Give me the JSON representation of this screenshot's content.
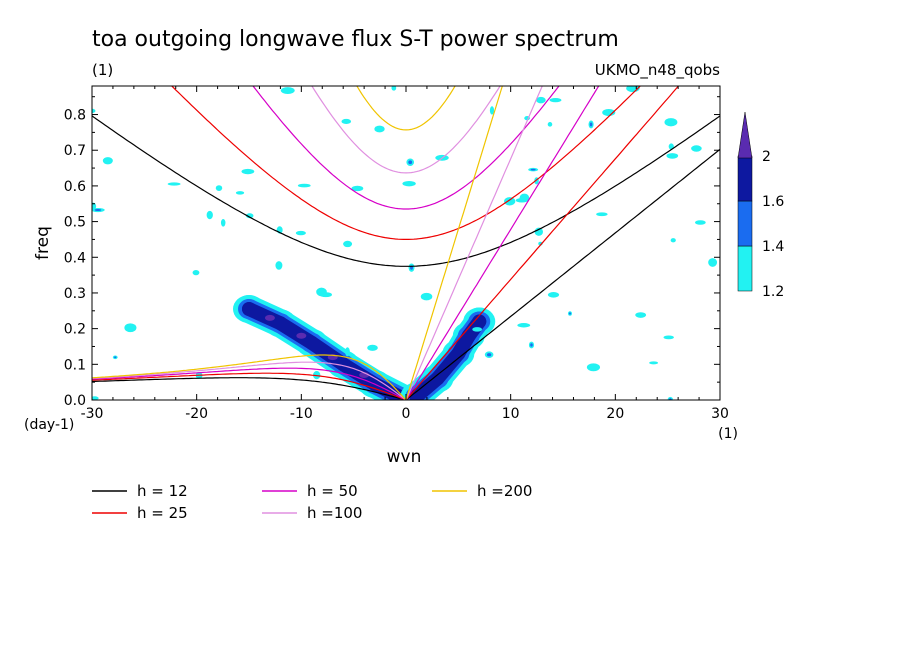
{
  "chart_data": {
    "type": "heatmap",
    "title": "toa outgoing longwave flux S-T power spectrum",
    "subtitle_left": "(1)",
    "subtitle_right": "UKMO_n48_qobs",
    "xlabel": "wvn",
    "ylabel": "freq",
    "y_unit_label": "(day-1)",
    "x_unit_label": "(1)",
    "xlim": [
      -30,
      30
    ],
    "ylim": [
      0,
      0.88
    ],
    "x_ticks": [
      -30,
      -20,
      -10,
      0,
      10,
      20,
      30
    ],
    "x_tick_labels": [
      "-30",
      "-20",
      "-10",
      "0",
      "10",
      "20",
      "30"
    ],
    "y_ticks": [
      0.0,
      0.1,
      0.2,
      0.3,
      0.4,
      0.5,
      0.6,
      0.7,
      0.8
    ],
    "y_tick_labels": [
      "0.0",
      "0.1",
      "0.2",
      "0.3",
      "0.4",
      "0.5",
      "0.6",
      "0.7",
      "0.8"
    ],
    "colorbar": {
      "levels": [
        1.2,
        1.4,
        1.6,
        2
      ],
      "labels": [
        "1.2",
        "1.4",
        "1.6",
        "2"
      ],
      "colors": [
        "#22f2f2",
        "#1a6cf0",
        "#0d18a0",
        "#5a2bb0"
      ]
    },
    "dispersion_curves": [
      {
        "label": "h = 12",
        "h": 12,
        "color": "#000000"
      },
      {
        "label": "h = 25",
        "h": 25,
        "color": "#ee0000"
      },
      {
        "label": "h = 50",
        "h": 50,
        "color": "#d600c8"
      },
      {
        "label": "h =100",
        "h": 100,
        "color": "#e090e0"
      },
      {
        "label": "h =200",
        "h": 200,
        "color": "#f0c400"
      }
    ],
    "ridges": [
      {
        "name": "westward-n1",
        "points": [
          [
            -15,
            0.255
          ],
          [
            -12,
            0.215
          ],
          [
            -9,
            0.16
          ],
          [
            -6,
            0.1
          ],
          [
            -3,
            0.045
          ],
          [
            0,
            0.0
          ]
        ]
      },
      {
        "name": "kelvin",
        "points": [
          [
            1,
            0.01
          ],
          [
            3,
            0.06
          ],
          [
            5,
            0.13
          ],
          [
            6,
            0.18
          ],
          [
            7,
            0.22
          ]
        ]
      }
    ]
  }
}
